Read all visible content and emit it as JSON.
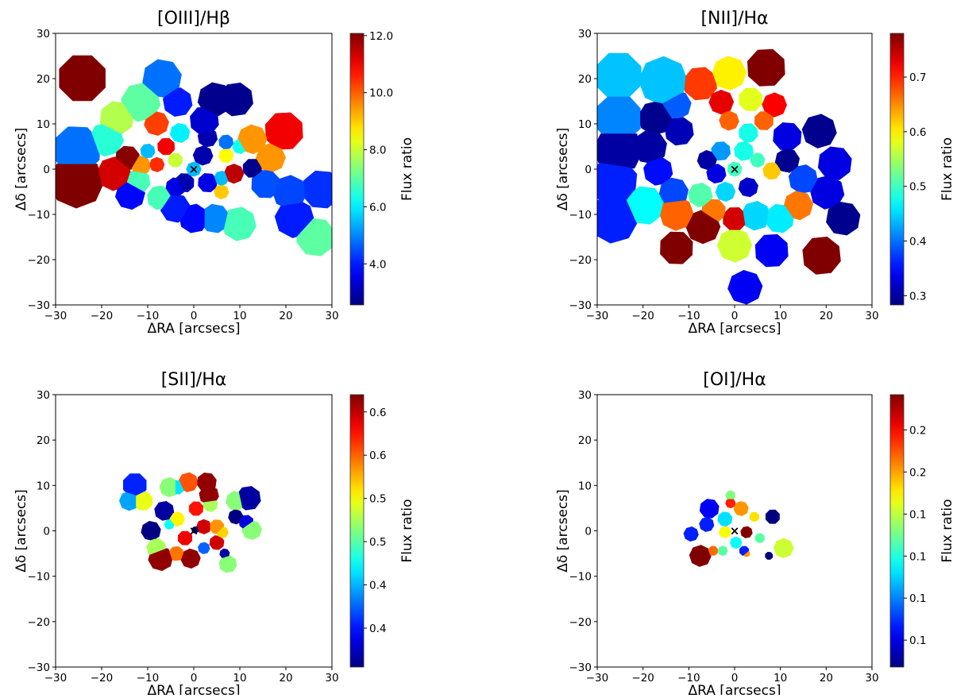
{
  "chart_data": [
    {
      "type": "heatmap",
      "title": "[OIII]/Hβ",
      "xlabel": "ΔRA [arcsecs]",
      "ylabel": "Δδ [arcsecs]",
      "xlim": [
        -30,
        30
      ],
      "ylim": [
        -30,
        30
      ],
      "xticks": [
        -30,
        -20,
        -10,
        0,
        10,
        20,
        30
      ],
      "xtick_labels": [
        "−30",
        "−20",
        "−10",
        "0",
        "10",
        "20",
        "30"
      ],
      "yticks": [
        -30,
        -20,
        -10,
        0,
        10,
        20,
        30
      ],
      "ytick_labels": [
        "−30",
        "−20",
        "−10",
        "0",
        "10",
        "20",
        "30"
      ],
      "colorbar": {
        "label": "Flux ratio",
        "colormap": "jet",
        "vmin": 2.56,
        "vmax": 12.08,
        "ticks": [
          4,
          6,
          8,
          10,
          12
        ],
        "tick_labels": [
          "4.0",
          "6.0",
          "8.0",
          "10.0",
          "12.0"
        ]
      },
      "center_marker": "×",
      "bins": [
        [
          -24.2,
          20.1,
          12.1,
          5
        ],
        [
          -25.4,
          -2.7,
          12.1,
          5.5
        ],
        [
          -25.4,
          4.3,
          4.8,
          5
        ],
        [
          -17.3,
          -1,
          11.3,
          3.5
        ],
        [
          -14.4,
          2.5,
          12,
          2.5
        ],
        [
          -19,
          6.6,
          6.5,
          3.5
        ],
        [
          -16.7,
          11.3,
          7.8,
          3.5
        ],
        [
          -11.5,
          14.8,
          7,
          4
        ],
        [
          -6.9,
          20,
          4.8,
          4
        ],
        [
          -3.5,
          14.8,
          4,
          3
        ],
        [
          4.6,
          15.4,
          2.7,
          3.5
        ],
        [
          9.2,
          15.4,
          2.7,
          3.5
        ],
        [
          -8.1,
          10.1,
          10.3,
          2.5
        ],
        [
          2.3,
          10.7,
          3.3,
          3
        ],
        [
          12.7,
          6.6,
          9.5,
          3
        ],
        [
          19.6,
          8.4,
          11,
          4
        ],
        [
          16.7,
          2.5,
          9.5,
          3
        ],
        [
          12.7,
          0.2,
          2.7,
          2
        ],
        [
          8.7,
          -1,
          11.5,
          2
        ],
        [
          15.6,
          -3.3,
          4.5,
          3
        ],
        [
          20.8,
          -5.1,
          4.4,
          3.5
        ],
        [
          27.7,
          -4.5,
          4.2,
          4
        ],
        [
          21.9,
          -10.9,
          4,
          4
        ],
        [
          26.5,
          -15,
          7,
          4
        ],
        [
          9.8,
          -12.1,
          6.8,
          3.5
        ],
        [
          4.6,
          -10.9,
          5,
          3
        ],
        [
          0,
          -10.9,
          3.8,
          3
        ],
        [
          -4,
          -8.6,
          4,
          3
        ],
        [
          -7.5,
          -6.3,
          6.8,
          2.5
        ],
        [
          -13.8,
          -5.7,
          3.8,
          3
        ],
        [
          -12.1,
          -2.7,
          6.8,
          2.5
        ],
        [
          -11.5,
          0.8,
          9.5,
          2
        ],
        [
          -6,
          5,
          11,
          1.8
        ],
        [
          -8,
          1,
          10.5,
          1.5
        ],
        [
          -4,
          2,
          8,
          1.5
        ],
        [
          0,
          0,
          5.5,
          1.5
        ],
        [
          -2,
          -3,
          3,
          2
        ],
        [
          2,
          3,
          3,
          2
        ],
        [
          3,
          -3,
          3.5,
          2
        ],
        [
          6,
          -5,
          9,
          1.5
        ],
        [
          7,
          3,
          8.5,
          1.5
        ],
        [
          6,
          -2,
          5.5,
          1.5
        ],
        [
          -4,
          -4,
          3.5,
          2
        ],
        [
          3,
          7,
          3,
          2
        ],
        [
          -3,
          8,
          6,
          2
        ],
        [
          -10,
          4,
          5.5,
          1.5
        ],
        [
          10,
          5,
          6.3,
          1.5
        ],
        [
          7,
          6,
          4.8,
          1.5
        ]
      ]
    },
    {
      "type": "heatmap",
      "title": "[NII]/Hα",
      "xlabel": "ΔRA [arcsecs]",
      "ylabel": "Δδ [arcsecs]",
      "xlim": [
        -30,
        30
      ],
      "ylim": [
        -30,
        30
      ],
      "xticks": [
        -30,
        -20,
        -10,
        0,
        10,
        20,
        30
      ],
      "xtick_labels": [
        "−30",
        "−20",
        "−10",
        "0",
        "10",
        "20",
        "30"
      ],
      "yticks": [
        -30,
        -20,
        -10,
        0,
        10,
        20,
        30
      ],
      "ytick_labels": [
        "−30",
        "−20",
        "−10",
        "0",
        "10",
        "20",
        "30"
      ],
      "colorbar": {
        "label": "Flux ratio",
        "colormap": "jet",
        "vmin": 0.283,
        "vmax": 0.78,
        "ticks": [
          0.3,
          0.4,
          0.5,
          0.6,
          0.7
        ],
        "tick_labels": [
          "0.3",
          "0.4",
          "0.5",
          "0.6",
          "0.7"
        ]
      },
      "center_marker": "×",
      "bins": [
        [
          -25.4,
          20.6,
          0.44,
          5
        ],
        [
          -15.6,
          19.5,
          0.44,
          5
        ],
        [
          -25.4,
          11.3,
          0.41,
          5
        ],
        [
          -25.4,
          4.3,
          0.3,
          5
        ],
        [
          -26.5,
          -2.7,
          0.36,
          5
        ],
        [
          -26.5,
          -11,
          0.36,
          5
        ],
        [
          -19.6,
          -8,
          0.47,
          4
        ],
        [
          -17.3,
          11.3,
          0.29,
          3.5
        ],
        [
          -18.5,
          4.9,
          0.3,
          3.5
        ],
        [
          -16.7,
          -0.4,
          0.35,
          3
        ],
        [
          -13.3,
          -5.1,
          0.38,
          3
        ],
        [
          -12.1,
          8.4,
          0.31,
          3
        ],
        [
          -12.7,
          14.2,
          0.39,
          3
        ],
        [
          -7.5,
          18.9,
          0.69,
          3.5
        ],
        [
          -1.2,
          21.2,
          0.6,
          3.5
        ],
        [
          6.9,
          22.4,
          0.78,
          4
        ],
        [
          -2.9,
          14.8,
          0.73,
          2.5
        ],
        [
          3.5,
          15.4,
          0.58,
          2.5
        ],
        [
          8.7,
          14.2,
          0.72,
          2.5
        ],
        [
          6.4,
          10.7,
          0.67,
          2
        ],
        [
          -1.2,
          10.7,
          0.67,
          2
        ],
        [
          11.5,
          7.2,
          0.33,
          3
        ],
        [
          18.5,
          8.4,
          0.29,
          3.5
        ],
        [
          21.9,
          1.3,
          0.33,
          3.5
        ],
        [
          20.2,
          -5.1,
          0.33,
          3.5
        ],
        [
          23.7,
          -10.9,
          0.29,
          3.5
        ],
        [
          15,
          -2.2,
          0.38,
          3
        ],
        [
          11.5,
          1.9,
          0.29,
          2.5
        ],
        [
          8.1,
          -0.4,
          0.62,
          1.8
        ],
        [
          13.9,
          -8,
          0.66,
          3
        ],
        [
          19,
          -19.1,
          0.78,
          4
        ],
        [
          2.3,
          -26.1,
          0.34,
          3.5
        ],
        [
          8.1,
          -18,
          0.34,
          3.5
        ],
        [
          0,
          -16.8,
          0.57,
          3.5
        ],
        [
          0,
          -11,
          0.74,
          2.5
        ],
        [
          -6.9,
          -12.7,
          0.78,
          3.5
        ],
        [
          -12.7,
          -17.4,
          0.78,
          3.5
        ],
        [
          -12.7,
          -9.8,
          0.67,
          3.5
        ],
        [
          -4.6,
          -9.2,
          0.66,
          2.5
        ],
        [
          4.6,
          -10.3,
          0.45,
          3
        ],
        [
          9.8,
          -10.9,
          0.46,
          3
        ],
        [
          -7.5,
          -5.7,
          0.51,
          2.5
        ],
        [
          0,
          0,
          0.5,
          1.5
        ],
        [
          -4,
          -1,
          0.33,
          2
        ],
        [
          3,
          -4,
          0.32,
          2
        ],
        [
          2,
          4,
          0.48,
          2
        ],
        [
          5,
          2,
          0.5,
          1.5
        ],
        [
          -3,
          4,
          0.42,
          2
        ],
        [
          -6,
          2,
          0.3,
          2
        ],
        [
          3,
          8,
          0.48,
          2
        ],
        [
          -2,
          -5,
          0.45,
          2
        ]
      ]
    },
    {
      "type": "heatmap",
      "title": "[SII]/Hα",
      "xlabel": "ΔRA [arcsecs]",
      "ylabel": "Δδ [arcsecs]",
      "xlim": [
        -30,
        30
      ],
      "ylim": [
        -30,
        30
      ],
      "xticks": [
        -30,
        -20,
        -10,
        0,
        10,
        20,
        30
      ],
      "xtick_labels": [
        "−30",
        "−20",
        "−10",
        "0",
        "10",
        "20",
        "30"
      ],
      "yticks": [
        -30,
        -20,
        -10,
        0,
        10,
        20,
        30
      ],
      "ytick_labels": [
        "−30",
        "−20",
        "−10",
        "0",
        "10",
        "20",
        "30"
      ],
      "colorbar": {
        "label": "Flux ratio",
        "colormap": "jet",
        "vmin": 0.33,
        "vmax": 0.645,
        "ticks": [
          0.375,
          0.425,
          0.475,
          0.525,
          0.575,
          0.625
        ],
        "tick_labels": [
          "0.4",
          "0.4",
          "0.5",
          "0.5",
          "0.6",
          "0.6"
        ]
      },
      "center_marker": "×",
      "bins": [
        [
          -12.8,
          10.1,
          0.38,
          2.5
        ],
        [
          -14,
          6.6,
          0.42,
          2
        ],
        [
          -11,
          6.6,
          0.52,
          2
        ],
        [
          -5.3,
          9.6,
          0.49,
          2
        ],
        [
          -3.6,
          9.6,
          0.44,
          1.5
        ],
        [
          -1.2,
          10.7,
          0.58,
          2
        ],
        [
          2.8,
          10.7,
          0.64,
          2
        ],
        [
          3.3,
          7.9,
          0.64,
          2
        ],
        [
          3.6,
          5.8,
          0.5,
          1.5
        ],
        [
          -6.4,
          4.4,
          0.34,
          2
        ],
        [
          -9.3,
          0,
          0.33,
          2
        ],
        [
          -8.1,
          -3.8,
          0.5,
          2
        ],
        [
          -7.2,
          -6.1,
          0.64,
          2.5
        ],
        [
          -3.8,
          -5,
          0.57,
          1.5
        ],
        [
          -0.7,
          -6.1,
          0.64,
          2
        ],
        [
          0.3,
          0.2,
          0.33,
          0.7
        ],
        [
          2.2,
          0.9,
          0.62,
          1.5
        ],
        [
          -1.9,
          -1.6,
          0.61,
          1.5
        ],
        [
          -3.6,
          2.6,
          0.53,
          1.5
        ],
        [
          0.5,
          4.9,
          0.6,
          1.5
        ],
        [
          -5.3,
          1.4,
          0.45,
          1
        ],
        [
          5,
          0.9,
          0.56,
          1.5
        ],
        [
          6.2,
          -0.3,
          0.54,
          1.2
        ],
        [
          5,
          -2.6,
          0.62,
          1.5
        ],
        [
          2.2,
          -3.8,
          0.4,
          1.2
        ],
        [
          6.7,
          -5,
          0.34,
          1
        ],
        [
          7.4,
          -7.3,
          0.49,
          1.8
        ],
        [
          9.1,
          6.6,
          0.49,
          2
        ],
        [
          11.9,
          7.2,
          0.34,
          2.5
        ],
        [
          9.1,
          3.1,
          0.33,
          1.5
        ],
        [
          11.4,
          1.9,
          0.36,
          1.5
        ],
        [
          12.6,
          0.2,
          0.49,
          2
        ]
      ]
    },
    {
      "type": "heatmap",
      "title": "[OI]/Hα",
      "xlabel": "ΔRA [arcsecs]",
      "ylabel": "Δδ [arcsecs]",
      "xlim": [
        -30,
        30
      ],
      "ylim": [
        -30,
        30
      ],
      "xticks": [
        -30,
        -20,
        -10,
        0,
        10,
        20,
        30
      ],
      "xtick_labels": [
        "−30",
        "−20",
        "−10",
        "0",
        "10",
        "20",
        "30"
      ],
      "yticks": [
        -30,
        -20,
        -10,
        0,
        10,
        20,
        30
      ],
      "ytick_labels": [
        "−30",
        "−20",
        "−10",
        "0",
        "10",
        "20",
        "30"
      ],
      "colorbar": {
        "label": "Flux ratio",
        "colormap": "jet",
        "vmin": 0.034,
        "vmax": 0.196,
        "ticks": [
          0.05,
          0.075,
          0.1,
          0.125,
          0.15,
          0.175
        ],
        "tick_labels": [
          "0.1",
          "0.1",
          "0.1",
          "0.1",
          "0.2",
          "0.2"
        ]
      },
      "center_marker": "×",
      "bins": [
        [
          8.3,
          3.1,
          0.034,
          1.5
        ],
        [
          10.7,
          -3.8,
          0.127,
          2
        ],
        [
          7.5,
          -5.5,
          0.034,
          0.8
        ],
        [
          -7.5,
          -5.5,
          0.196,
          2.2
        ],
        [
          -4.7,
          -4.4,
          0.159,
          1
        ],
        [
          -9.5,
          -0.7,
          0.059,
          1.5
        ],
        [
          -5.5,
          4.9,
          0.053,
          2
        ],
        [
          -6.1,
          1.4,
          0.059,
          1.5
        ],
        [
          -2.1,
          2.6,
          0.09,
          1.5
        ],
        [
          2.6,
          -0.3,
          0.196,
          1.2
        ],
        [
          1.4,
          4.9,
          0.152,
          1.5
        ],
        [
          -0.9,
          7.8,
          0.115,
          1
        ],
        [
          -0.9,
          6.1,
          0.171,
          1
        ],
        [
          4.3,
          3.1,
          0.14,
          1
        ],
        [
          -2.1,
          -0.3,
          0.134,
          1.2
        ],
        [
          5.5,
          -1.6,
          0.109,
          1
        ],
        [
          0.3,
          -2.6,
          0.096,
          1.2
        ],
        [
          2.1,
          -4.4,
          0.059,
          1
        ],
        [
          -2.6,
          -4.4,
          0.109,
          1
        ],
        [
          2.6,
          -5,
          0.152,
          0.7
        ]
      ]
    }
  ]
}
